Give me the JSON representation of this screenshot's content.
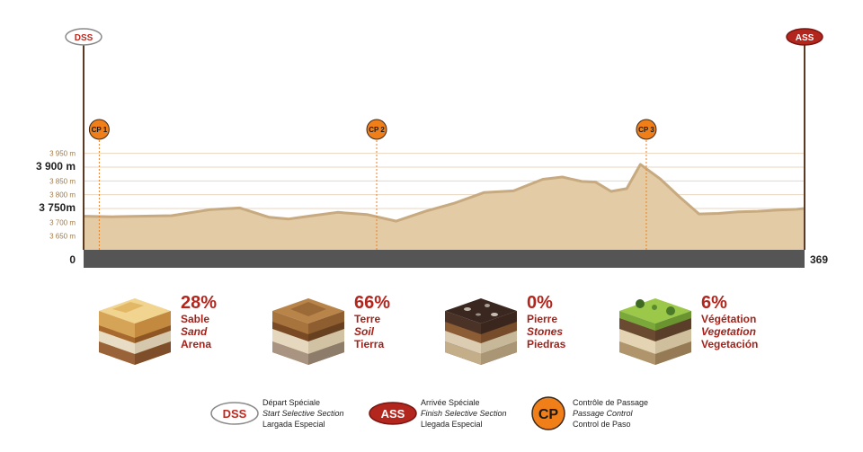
{
  "chart_data": {
    "type": "area",
    "title": "",
    "xlabel": "",
    "ylabel": "",
    "x_start_label": "0",
    "x_end_label": "369",
    "xlim": [
      0,
      369
    ],
    "ylim": [
      3600,
      3975
    ],
    "y_ticks": [
      {
        "value": 3650,
        "label": "3 650 m",
        "major": false
      },
      {
        "value": 3700,
        "label": "3 700 m",
        "major": false
      },
      {
        "value": 3750,
        "label": "3 750m",
        "major": true
      },
      {
        "value": 3800,
        "label": "3 800 m",
        "major": false
      },
      {
        "value": 3850,
        "label": "3 850 m",
        "major": false
      },
      {
        "value": 3900,
        "label": "3 900 m",
        "major": true
      },
      {
        "value": 3950,
        "label": "3 950 m",
        "major": false
      }
    ],
    "profile": {
      "x": [
        0,
        15,
        45,
        65,
        80,
        95,
        105,
        115,
        130,
        145,
        160,
        175,
        190,
        205,
        220,
        235,
        245,
        255,
        262,
        270,
        278,
        285,
        295,
        305,
        315,
        325,
        335,
        345,
        350,
        355,
        358,
        362,
        365,
        369
      ],
      "y": [
        3722,
        3720,
        3724,
        3746,
        3752,
        3718,
        3712,
        3722,
        3736,
        3728,
        3704,
        3740,
        3770,
        3808,
        3814,
        3856,
        3864,
        3848,
        3846,
        3812,
        3822,
        3910,
        3858,
        3792,
        3730,
        3732,
        3738,
        3740,
        3742,
        3744,
        3745,
        3746,
        3747,
        3750
      ]
    },
    "start_marker": "DSS",
    "end_marker": "ASS",
    "checkpoints": [
      {
        "label": "CP 1",
        "km": 8
      },
      {
        "label": "CP 2",
        "km": 150
      },
      {
        "label": "CP 3",
        "km": 288
      }
    ]
  },
  "terrains": [
    {
      "percent": "28%",
      "fr": "Sable",
      "en": "Sand",
      "es": "Arena",
      "top_color": "#e9c77a",
      "mid_color": "#c98c43"
    },
    {
      "percent": "66%",
      "fr": "Terre",
      "en": "Soil",
      "es": "Tierra",
      "top_color": "#b07a42",
      "mid_color": "#8a5a2c"
    },
    {
      "percent": "0%",
      "fr": "Pierre",
      "en": "Stones",
      "es": "Piedras",
      "top_color": "#3c2a22",
      "mid_color": "#6b4a32"
    },
    {
      "percent": "6%",
      "fr": "Végétation",
      "en": "Vegetation",
      "es": "Vegetación",
      "top_color": "#8fbf3c",
      "mid_color": "#6b4a32"
    }
  ],
  "legend": [
    {
      "badge": "DSS",
      "fr": "Départ Spéciale",
      "en": "Start Selective Section",
      "es": "Largada Especial"
    },
    {
      "badge": "ASS",
      "fr": "Arrivée Spéciale",
      "en": "Finish Selective Section",
      "es": "Llegada Especial"
    },
    {
      "badge": "CP",
      "fr": "Contrôle de Passage",
      "en": "Passage Control",
      "es": "Control de Paso"
    }
  ],
  "colors": {
    "profile_fill": "#e3cba6",
    "profile_stroke": "#c8aa80",
    "baseline_bar": "#555555",
    "accent_red": "#b3261e",
    "cp_orange": "#f07f1a",
    "grid": "#e8d6bf"
  }
}
